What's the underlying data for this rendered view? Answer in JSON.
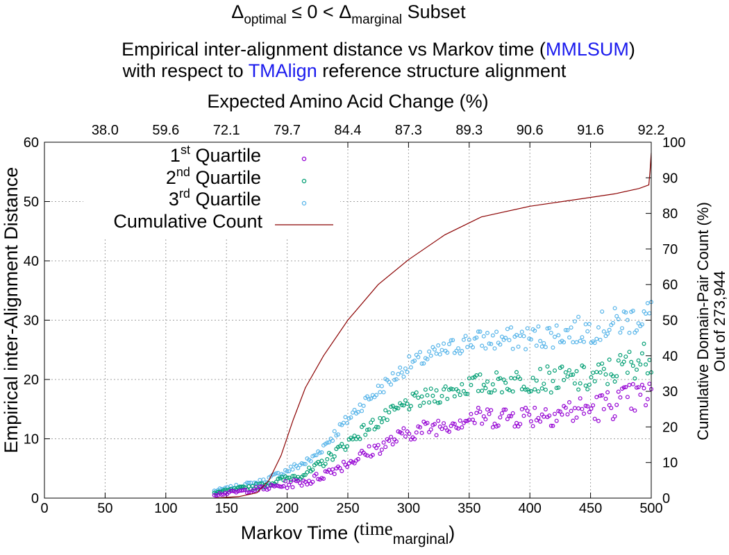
{
  "title": {
    "delta": "Δ",
    "optimal_sub": "optimal",
    "middle": " ≤ 0 < ",
    "marginal_sub": "marginal",
    "end": " Subset"
  },
  "subtitle": {
    "line1_pre": "Empirical inter-alignment distance vs Markov time (",
    "line1_link": "MMLSUM",
    "line1_post": ")",
    "line2_pre": "with respect to ",
    "line2_link": "TMAlign",
    "line2_post": " reference structure alignment"
  },
  "colors": {
    "q1": "#9400d3",
    "q2": "#009e73",
    "q3": "#56b4e9",
    "cumulative": "#8b0000",
    "link": "#1a1aee"
  },
  "chart_data": {
    "type": "scatter",
    "x2label": "Expected Amino Acid Change (%)",
    "x2_ticks": [
      "38.0",
      "59.6",
      "72.1",
      "79.7",
      "84.4",
      "87.3",
      "89.3",
      "90.6",
      "91.6",
      "92.2"
    ],
    "xlabel_pre": "Markov Time (",
    "xlabel_time": "time",
    "xlabel_sub": "marginal",
    "xlabel_post": ")",
    "ylabel": "Empirical inter-Alignment Distance",
    "y2label_line1": "Cumulative Domain-Pair Count (%)",
    "y2label_line2": "Out of 273,944",
    "xlim": [
      0,
      500
    ],
    "ylim": [
      0,
      60
    ],
    "y2lim": [
      0,
      100
    ],
    "x_ticks": [
      0,
      50,
      100,
      150,
      200,
      250,
      300,
      350,
      400,
      450,
      500
    ],
    "y_ticks": [
      0,
      10,
      20,
      30,
      40,
      50,
      60
    ],
    "y2_ticks": [
      0,
      10,
      20,
      30,
      40,
      50,
      60,
      70,
      80,
      90,
      100
    ],
    "grid": true,
    "legend_position": "top-left",
    "legend": {
      "q1_num": "1",
      "q1_sup": "st",
      "q2_num": "2",
      "q2_sup": "nd",
      "q3_num": "3",
      "q3_sup": "rd",
      "suffix": " Quartile",
      "cumulative": "Cumulative Count"
    },
    "series_trends": {
      "x_start": 140,
      "x_end": 500,
      "x_step": 1.5,
      "q1": [
        [
          140,
          0.6
        ],
        [
          180,
          1.6
        ],
        [
          220,
          3.0
        ],
        [
          260,
          7.0
        ],
        [
          300,
          11.0
        ],
        [
          350,
          13.5
        ],
        [
          400,
          14.0
        ],
        [
          450,
          15.0
        ],
        [
          500,
          17.5
        ]
      ],
      "q2": [
        [
          140,
          0.9
        ],
        [
          180,
          2.2
        ],
        [
          220,
          4.5
        ],
        [
          260,
          11.0
        ],
        [
          300,
          16.0
        ],
        [
          350,
          19.0
        ],
        [
          400,
          20.0
        ],
        [
          450,
          20.0
        ],
        [
          500,
          24.0
        ]
      ],
      "q3": [
        [
          140,
          1.2
        ],
        [
          180,
          2.8
        ],
        [
          220,
          6.5
        ],
        [
          260,
          15.5
        ],
        [
          300,
          22.5
        ],
        [
          350,
          26.5
        ],
        [
          400,
          27.0
        ],
        [
          450,
          28.5
        ],
        [
          500,
          31.0
        ]
      ]
    },
    "cumulative_percent": [
      [
        140,
        0
      ],
      [
        160,
        0.4
      ],
      [
        175,
        1.5
      ],
      [
        185,
        5
      ],
      [
        195,
        12
      ],
      [
        205,
        22
      ],
      [
        215,
        31
      ],
      [
        230,
        40
      ],
      [
        250,
        50
      ],
      [
        275,
        60
      ],
      [
        300,
        67
      ],
      [
        330,
        74
      ],
      [
        360,
        79
      ],
      [
        400,
        82
      ],
      [
        440,
        84
      ],
      [
        470,
        85.5
      ],
      [
        490,
        87
      ],
      [
        498,
        88
      ],
      [
        499,
        92
      ],
      [
        500,
        97
      ]
    ]
  }
}
